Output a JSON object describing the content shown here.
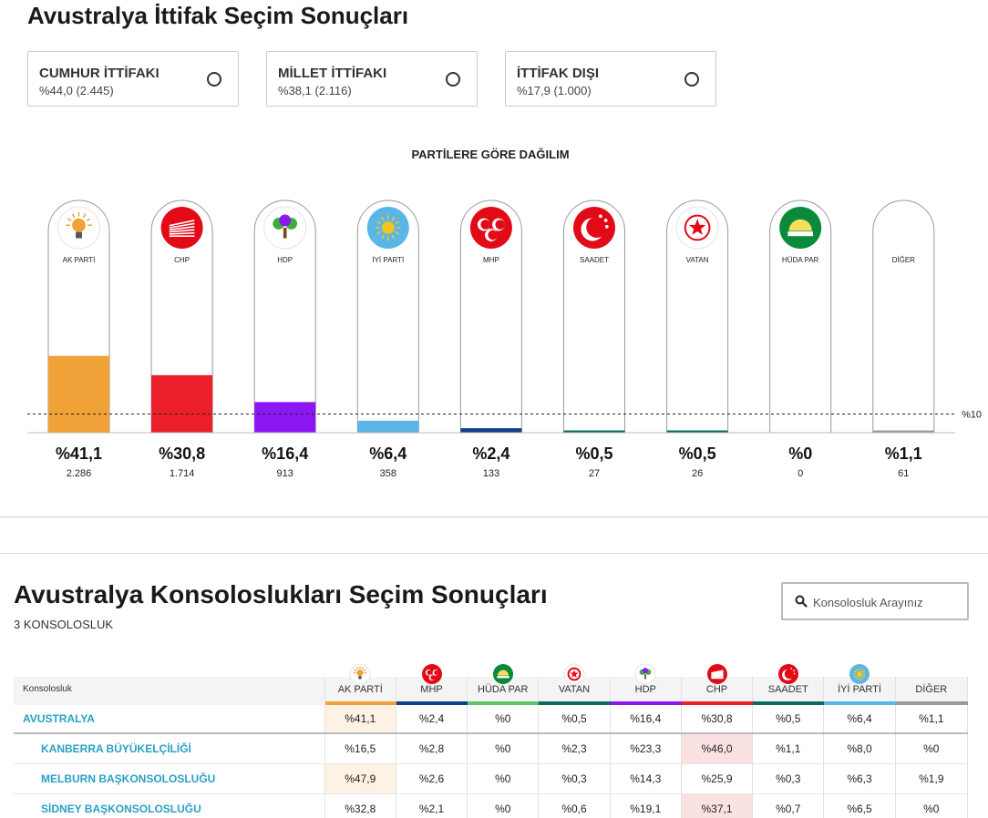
{
  "page_title": "Avustralya İttifak Seçim Sonuçları",
  "alliances": [
    {
      "name": "CUMHUR İTTİFAKI",
      "value": "%44,0 (2.445)"
    },
    {
      "name": "MİLLET İTTİFAKI",
      "value": "%38,1 (2.116)"
    },
    {
      "name": "İTTİFAK DIŞI",
      "value": "%17,9 (1.000)"
    }
  ],
  "distribution_title": "PARTİLERE GÖRE DAĞILIM",
  "threshold_label": "%10",
  "chart_data": {
    "type": "bar",
    "title": "PARTİLERE GÖRE DAĞILIM",
    "categories": [
      "AK PARTİ",
      "CHP",
      "HDP",
      "İYİ PARTİ",
      "MHP",
      "SAADET",
      "VATAN",
      "HÜDA PAR",
      "DİĞER"
    ],
    "values": [
      41.1,
      30.8,
      16.4,
      6.4,
      2.4,
      0.5,
      0.5,
      0,
      1.1
    ],
    "percent_labels": [
      "%41,1",
      "%30,8",
      "%16,4",
      "%6,4",
      "%2,4",
      "%0,5",
      "%0,5",
      "%0",
      "%1,1"
    ],
    "votes": [
      "2.286",
      "1.714",
      "913",
      "358",
      "133",
      "27",
      "26",
      "0",
      "61"
    ],
    "colors": [
      "#f0a137",
      "#ea1f2a",
      "#8c17f2",
      "#5bb6e8",
      "#123f87",
      "#0b6b5d",
      "#0b6b5d",
      "#0b6b5d",
      "#9a9a9a"
    ],
    "icons": [
      "ak-parti-logo-icon",
      "chp-logo-icon",
      "hdp-logo-icon",
      "iyi-parti-logo-icon",
      "mhp-logo-icon",
      "saadet-logo-icon",
      "vatan-logo-icon",
      "huda-par-logo-icon",
      ""
    ],
    "ylim": [
      0,
      100
    ],
    "threshold": 10
  },
  "consulates": {
    "title": "Avustralya Konsoloslukları Seçim Sonuçları",
    "count": "3 KONSOLOSLUK",
    "search_placeholder": "Konsolosluk Arayınız",
    "table": {
      "first_header": "Konsolosluk",
      "columns": [
        "AK PARTİ",
        "MHP",
        "HÜDA PAR",
        "VATAN",
        "HDP",
        "CHP",
        "SAADET",
        "İYİ PARTİ",
        "DİĞER"
      ],
      "column_colors": [
        "#f0a137",
        "#123f87",
        "#5dc36a",
        "#0b6b5d",
        "#8c17f2",
        "#ea1f2a",
        "#0b6b5d",
        "#5bb6e8",
        "#9a9a9a"
      ],
      "rows": [
        {
          "name": "AVUSTRALYA",
          "values": [
            "%41,1",
            "%2,4",
            "%0",
            "%0,5",
            "%16,4",
            "%30,8",
            "%0,5",
            "%6,4",
            "%1,1"
          ],
          "winner": 0
        },
        {
          "name": "KANBERRA BÜYÜKELÇİLİĞİ",
          "values": [
            "%16,5",
            "%2,8",
            "%0",
            "%2,3",
            "%23,3",
            "%46,0",
            "%1,1",
            "%8,0",
            "%0"
          ],
          "winner": 5
        },
        {
          "name": "MELBURN BAŞKONSOLOSLUĞU",
          "values": [
            "%47,9",
            "%2,6",
            "%0",
            "%0,3",
            "%14,3",
            "%25,9",
            "%0,3",
            "%6,3",
            "%1,9"
          ],
          "winner": 0
        },
        {
          "name": "SİDNEY BAŞKONSOLOSLUĞU",
          "values": [
            "%32,8",
            "%2,1",
            "%0",
            "%0,6",
            "%19,1",
            "%37,1",
            "%0,7",
            "%6,5",
            "%0"
          ],
          "winner": 5
        }
      ]
    }
  }
}
